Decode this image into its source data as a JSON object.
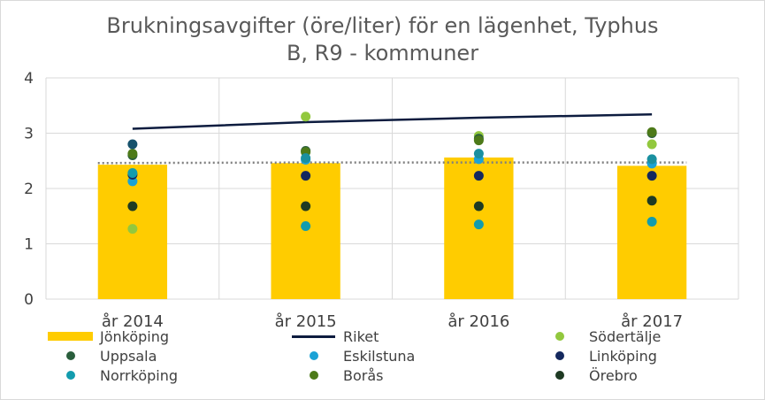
{
  "title_line1": "Brukningsavgifter (öre/liter) för en lägenhet, Typhus",
  "title_line2": "B, R9 - kommuner",
  "chart_data": {
    "type": "bar",
    "categories": [
      "år 2014",
      "år 2015",
      "år 2016",
      "år 2017"
    ],
    "ylim": [
      0,
      4
    ],
    "yticks": [
      0,
      1,
      2,
      3,
      4
    ],
    "yticklabels": [
      "0",
      "1",
      "2",
      "3",
      "4"
    ],
    "grid": true,
    "legend_position": "bottom",
    "series": [
      {
        "name": "Jönköping",
        "kind": "bar",
        "color": "#ffcc00",
        "values": [
          2.43,
          2.46,
          2.56,
          2.41
        ]
      },
      {
        "name": "Riket",
        "kind": "line",
        "color": "#0d1c3f",
        "values": [
          3.08,
          3.2,
          3.28,
          3.34
        ]
      },
      {
        "name": "Södertälje",
        "kind": "point",
        "color": "#92c83e",
        "values": [
          1.27,
          3.3,
          2.95,
          2.8
        ]
      },
      {
        "name": "Uppsala",
        "kind": "point",
        "color": "#2a5e3c",
        "values": [
          2.6,
          2.68,
          2.9,
          3.0
        ]
      },
      {
        "name": "Eskilstuna",
        "kind": "point",
        "color": "#1ba2d6",
        "values": [
          2.13,
          2.52,
          2.53,
          2.45
        ]
      },
      {
        "name": "Linköping",
        "kind": "point",
        "color": "#14285e",
        "values": [
          2.25,
          2.23,
          2.23,
          2.23
        ]
      },
      {
        "name": "Norrköping",
        "kind": "point",
        "color": "#139cae",
        "values": [
          2.28,
          1.32,
          1.35,
          1.4
        ]
      },
      {
        "name": "Borås",
        "kind": "point",
        "color": "#4d7a19",
        "values": [
          2.63,
          2.66,
          2.87,
          3.02
        ]
      },
      {
        "name": "Örebro",
        "kind": "point",
        "color": "#1e3a23",
        "values": [
          1.68,
          1.68,
          1.68,
          1.78
        ]
      },
      {
        "name": "",
        "kind": "point",
        "color": "#17526c",
        "values": [
          2.8,
          null,
          null,
          null
        ]
      },
      {
        "name": "",
        "kind": "point",
        "color": "#1a90a0",
        "values": [
          null,
          2.55,
          2.63,
          2.53
        ]
      },
      {
        "name": "",
        "kind": "dotted-line",
        "color": "#7f7f7f",
        "values": [
          2.46,
          2.47,
          2.47,
          2.47
        ]
      }
    ]
  }
}
